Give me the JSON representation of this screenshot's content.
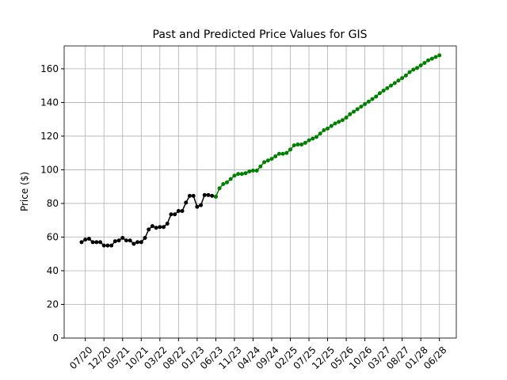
{
  "chart_data": {
    "type": "line",
    "title": "Past and Predicted Price Values for GIS",
    "y_label": "Price ($)",
    "categories": [
      null,
      "07/20",
      null,
      null,
      null,
      null,
      "12/20",
      null,
      null,
      null,
      null,
      "05/21",
      null,
      null,
      null,
      null,
      "10/21",
      null,
      null,
      null,
      null,
      "03/22",
      null,
      null,
      null,
      null,
      "08/22",
      null,
      null,
      null,
      null,
      "01/23",
      null,
      null,
      null,
      null,
      "06/23",
      null,
      null,
      null,
      null,
      "11/23",
      null,
      null,
      null,
      null,
      "04/24",
      null,
      null,
      null,
      null,
      "09/24",
      null,
      null,
      null,
      null,
      "02/25",
      null,
      null,
      null,
      null,
      "07/25",
      null,
      null,
      null,
      null,
      "12/25",
      null,
      null,
      null,
      null,
      "05/26",
      null,
      null,
      null,
      null,
      "10/26",
      null,
      null,
      null,
      null,
      "03/27",
      null,
      null,
      null,
      null,
      "08/27",
      null,
      null,
      null,
      null,
      "01/28",
      null,
      null,
      null,
      null,
      "06/28"
    ],
    "series": [
      {
        "color": "#000000",
        "values": [
          57,
          58.5,
          59,
          57,
          57,
          57,
          55,
          55,
          55,
          57.5,
          58,
          59.5,
          58,
          58,
          56,
          57,
          57,
          59.5,
          64.5,
          66.5,
          65.5,
          66,
          66,
          68,
          73.5,
          73.5,
          75.5,
          75.5,
          80.5,
          84.5,
          84.5,
          78,
          79,
          85,
          85,
          84.5,
          84,
          null,
          null,
          null,
          null,
          null,
          null,
          null,
          null,
          null,
          null,
          null,
          null,
          null,
          null,
          null,
          null,
          null,
          null,
          null,
          null,
          null,
          null,
          null,
          null,
          null,
          null,
          null,
          null,
          null,
          null,
          null,
          null,
          null,
          null,
          null,
          null,
          null,
          null,
          null,
          null,
          null,
          null,
          null,
          null,
          null,
          null,
          null,
          null,
          null,
          null,
          null,
          null,
          null,
          null,
          null,
          null,
          null,
          null,
          null,
          null
        ]
      },
      {
        "color": "#008000",
        "values": [
          null,
          null,
          null,
          null,
          null,
          null,
          null,
          null,
          null,
          null,
          null,
          null,
          null,
          null,
          null,
          null,
          null,
          null,
          null,
          null,
          null,
          null,
          null,
          null,
          null,
          null,
          null,
          null,
          null,
          null,
          null,
          null,
          null,
          null,
          null,
          null,
          84,
          89,
          91.5,
          92.5,
          94.5,
          96.5,
          97.5,
          97.5,
          98,
          99,
          99.5,
          99.5,
          102,
          104.5,
          105.5,
          106.5,
          108,
          109.5,
          109.5,
          110,
          112,
          114.5,
          115,
          115,
          116,
          117.5,
          118.5,
          119.5,
          121.5,
          123.5,
          124.5,
          126,
          127.5,
          128.5,
          129.5,
          131,
          133,
          134.5,
          136,
          137.5,
          139,
          140.5,
          142,
          143.5,
          145.5,
          147,
          148.5,
          150,
          151.5,
          153,
          154.5,
          156,
          158,
          159.5,
          160.5,
          162,
          163.5,
          165,
          166,
          167,
          168
        ]
      }
    ],
    "ylim": [
      0,
      173.6
    ],
    "yticks": [
      0,
      20,
      40,
      60,
      80,
      100,
      120,
      140,
      160
    ],
    "grid": true
  }
}
